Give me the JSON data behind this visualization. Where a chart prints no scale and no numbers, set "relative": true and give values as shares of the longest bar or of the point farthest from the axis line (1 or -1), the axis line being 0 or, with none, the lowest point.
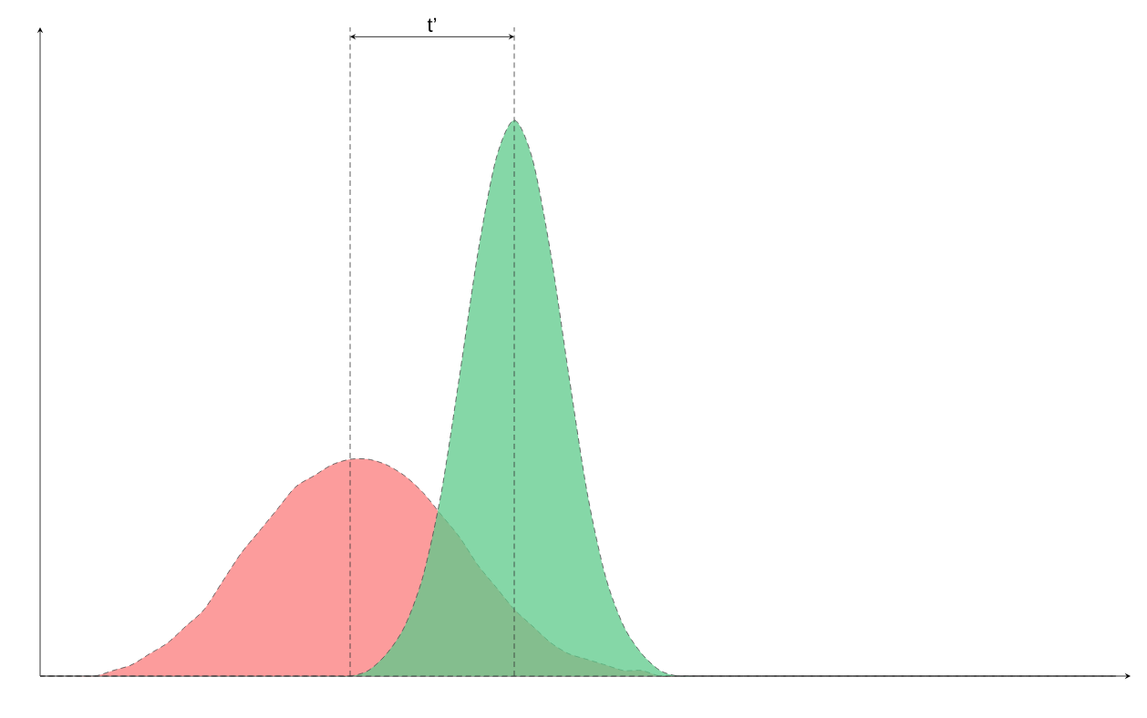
{
  "chart_data": {
    "type": "area",
    "relative": true,
    "categories": [
      null,
      null,
      null,
      null,
      null,
      null,
      null,
      null,
      null,
      null,
      null,
      null,
      null,
      null,
      null,
      null,
      null,
      null,
      null,
      null,
      null,
      null,
      null,
      null,
      null,
      null,
      null,
      null,
      null,
      null,
      null,
      null,
      null,
      null,
      null,
      null,
      null,
      null,
      null,
      null,
      null,
      null,
      null,
      null,
      null,
      null,
      null,
      null,
      null,
      null,
      null,
      null,
      null,
      null,
      null,
      null,
      null,
      null,
      null,
      null
    ],
    "series": [
      {
        "color": "#fb7b7b",
        "values": [
          0,
          0,
          0,
          0,
          0.01,
          0.02,
          0.04,
          0.06,
          0.09,
          0.12,
          0.17,
          0.22,
          0.26,
          0.3,
          0.34,
          0.36,
          0.38,
          0.39,
          0.39,
          0.38,
          0.36,
          0.33,
          0.29,
          0.25,
          0.2,
          0.16,
          0.12,
          0.09,
          0.06,
          0.04,
          0.03,
          0.02,
          0.01,
          0.01,
          0,
          0,
          0,
          0,
          0,
          0,
          0,
          0,
          0,
          0,
          0,
          0,
          0,
          0,
          0,
          0,
          0,
          0,
          0,
          0,
          0,
          0,
          0,
          0,
          0,
          0
        ]
      },
      {
        "color": "#5cc98a",
        "values": [
          0,
          0,
          0,
          0,
          0,
          0,
          0,
          0,
          0,
          0,
          0,
          0,
          0,
          0,
          0,
          0,
          0,
          0,
          0.01,
          0.04,
          0.09,
          0.18,
          0.33,
          0.54,
          0.76,
          0.93,
          1,
          0.93,
          0.76,
          0.54,
          0.33,
          0.18,
          0.09,
          0.04,
          0.01,
          0,
          0,
          0,
          0,
          0,
          0,
          0,
          0,
          0,
          0,
          0,
          0,
          0,
          0,
          0,
          0,
          0,
          0,
          0,
          0,
          0,
          0,
          0,
          0,
          0
        ]
      }
    ],
    "annotations": [
      "t’"
    ]
  }
}
